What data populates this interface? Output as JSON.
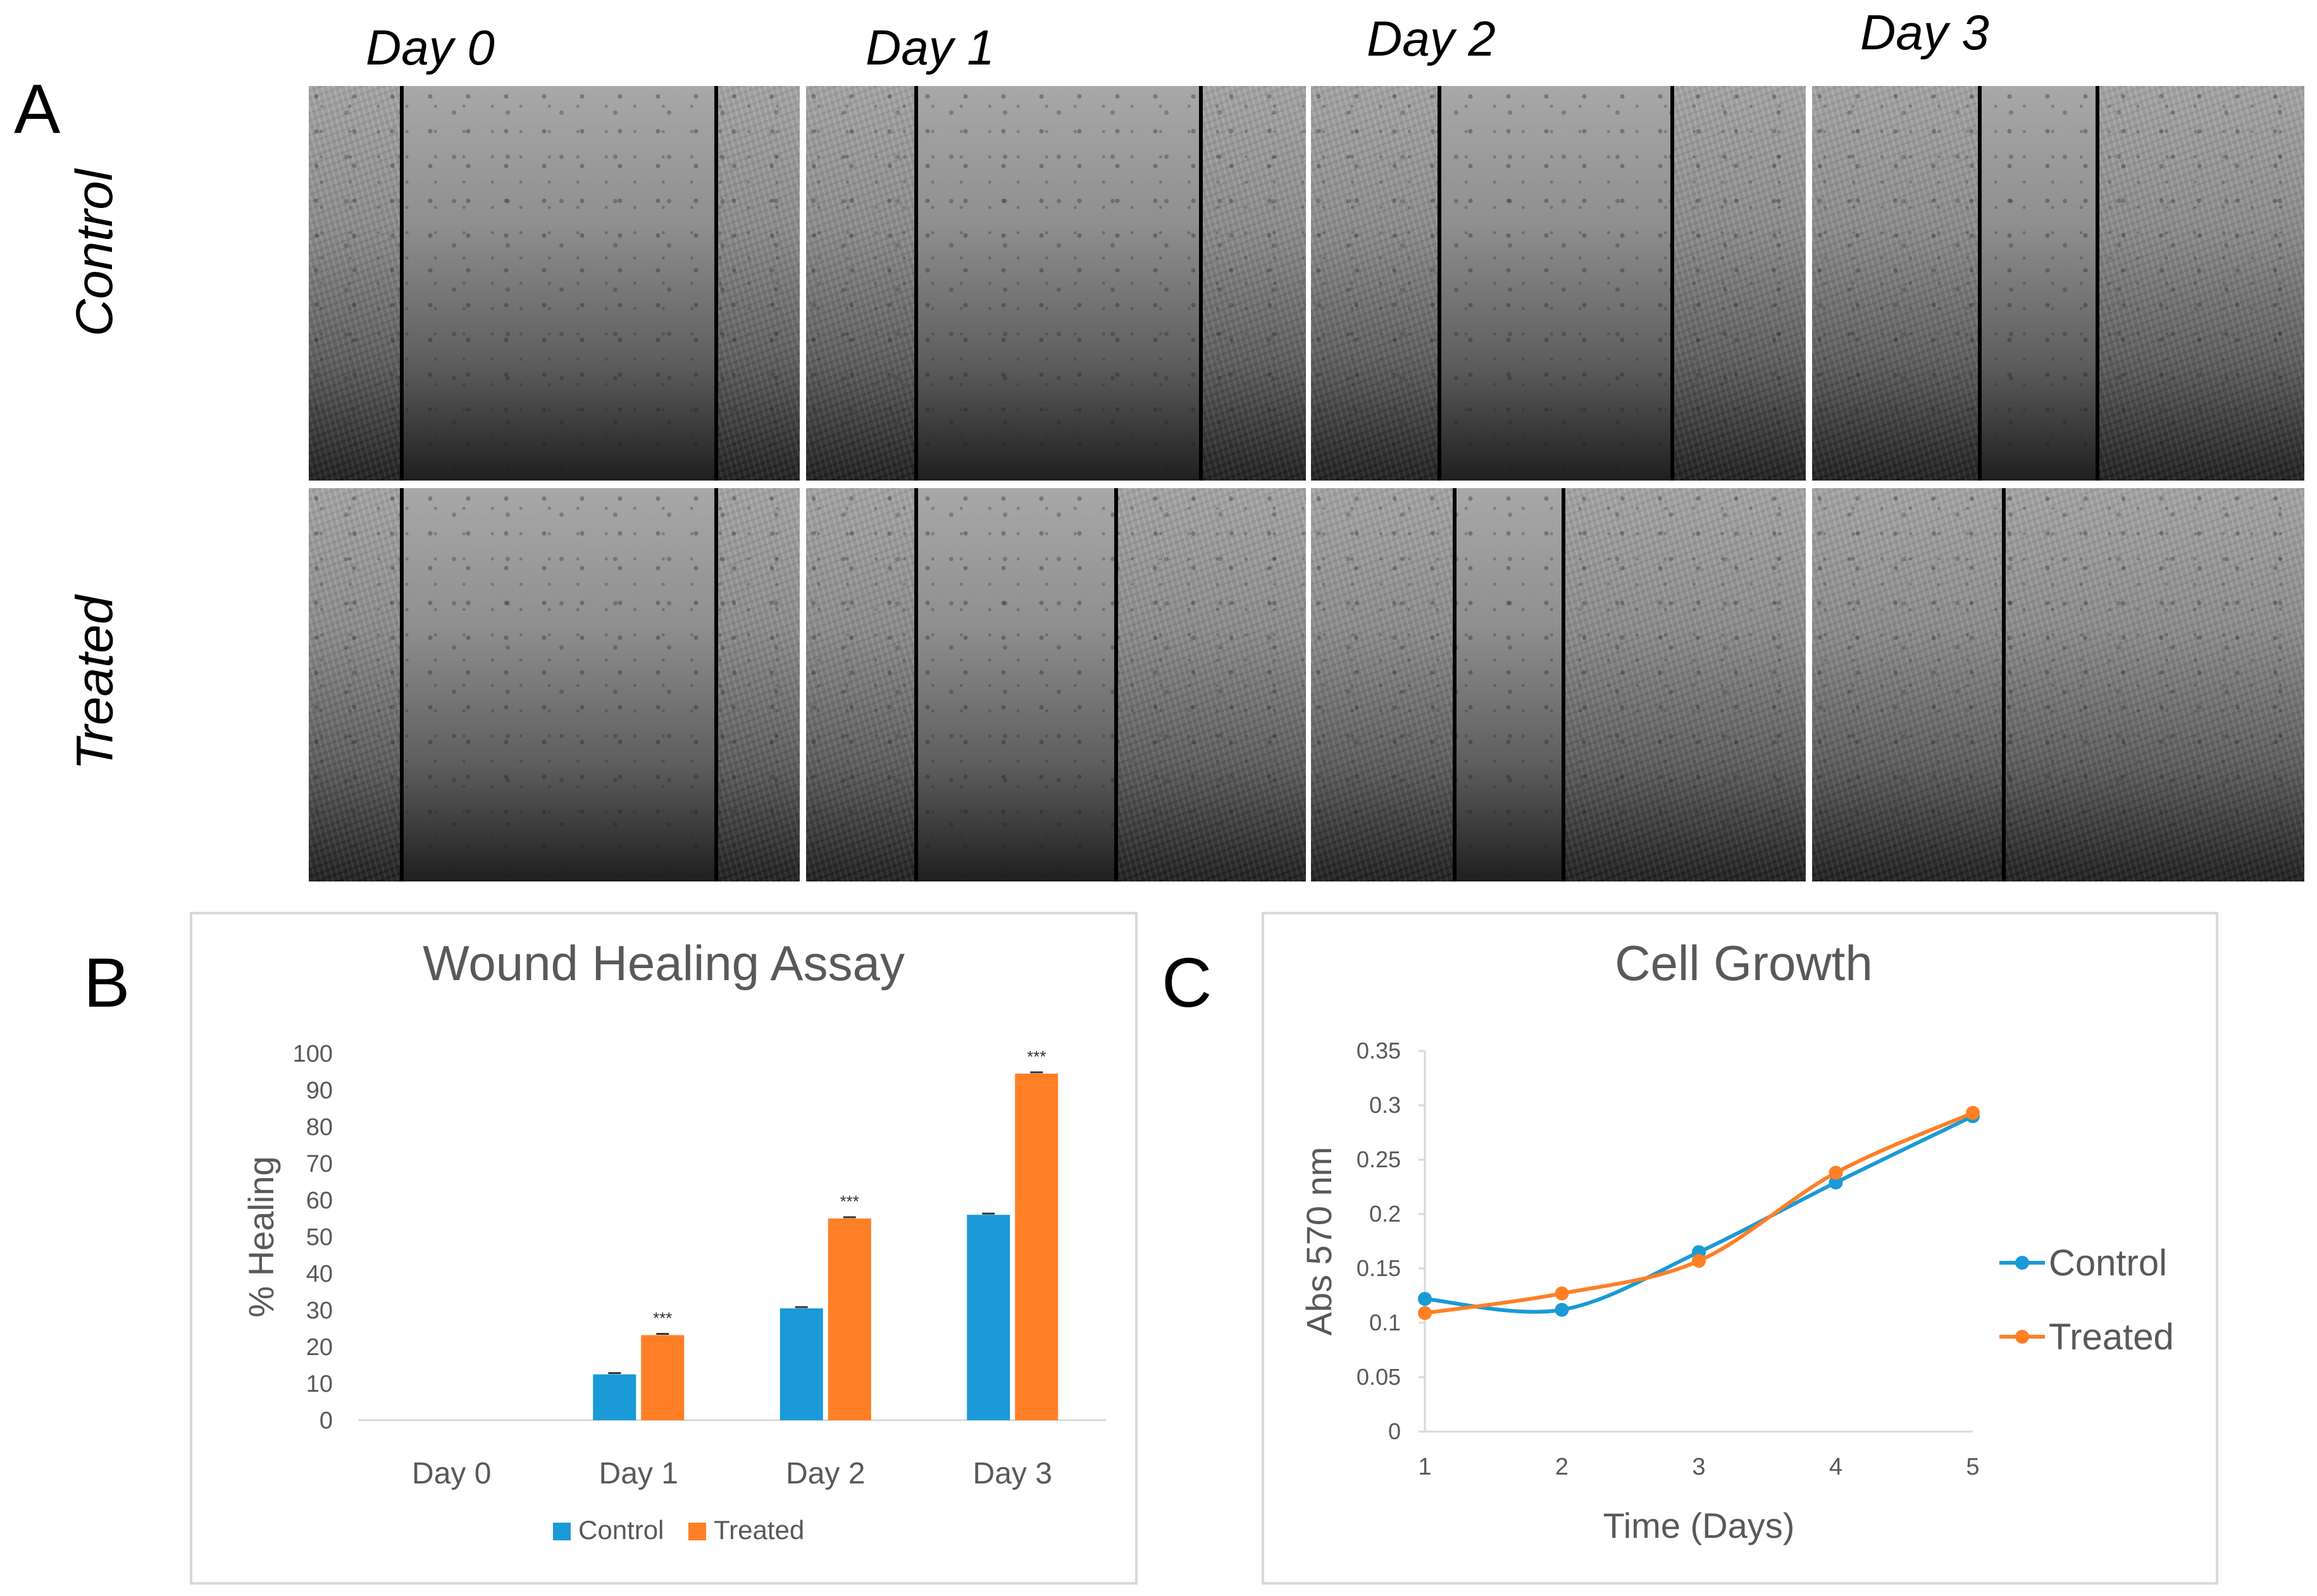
{
  "panels": {
    "a": "A",
    "b": "B",
    "c": "C"
  },
  "days": [
    "Day 0",
    "Day 1",
    "Day 2",
    "Day 3"
  ],
  "rows": [
    "Control",
    "Treated"
  ],
  "micrographs": {
    "control": [
      {
        "gap": [
          0.19,
          0.83
        ]
      },
      {
        "gap": [
          0.22,
          0.79
        ]
      },
      {
        "gap": [
          0.26,
          0.73
        ]
      },
      {
        "gap": [
          0.34,
          0.58
        ]
      }
    ],
    "treated": [
      {
        "gap": [
          0.19,
          0.83
        ]
      },
      {
        "gap": [
          0.22,
          0.62
        ]
      },
      {
        "gap": [
          0.29,
          0.51
        ]
      },
      {
        "gap": [
          0.39,
          0.39
        ]
      }
    ]
  },
  "colors": {
    "control": "#1a9ad6",
    "treated": "#ff7f27",
    "axis": "#d9d9d9",
    "text": "#595959",
    "title": "#595959"
  },
  "chart_data": [
    {
      "type": "bar",
      "title": "Wound Healing Assay",
      "ylabel": "% Healing",
      "xlabel": "",
      "ylim": [
        0,
        100
      ],
      "yticks": [
        "0",
        "10",
        "20",
        "30",
        "40",
        "50",
        "60",
        "70",
        "80",
        "90",
        "100"
      ],
      "categories": [
        "Day 0",
        "Day 1",
        "Day 2",
        "Day 3"
      ],
      "series": [
        {
          "name": "Control",
          "values": [
            0,
            12.5,
            30.5,
            56
          ]
        },
        {
          "name": "Treated",
          "values": [
            0,
            23.2,
            55,
            94.5
          ]
        }
      ],
      "annotations": [
        "",
        "***",
        "***",
        "***"
      ],
      "legend": "bottom"
    },
    {
      "type": "line",
      "title": "Cell Growth",
      "xlabel": "Time (Days)",
      "ylabel": "Abs 570 nm",
      "xlim": [
        1,
        5
      ],
      "ylim": [
        0,
        0.35
      ],
      "xticks": [
        "1",
        "2",
        "3",
        "4",
        "5"
      ],
      "yticks": [
        "0",
        "0.05",
        "0.1",
        "0.15",
        "0.2",
        "0.25",
        "0.3",
        "0.35"
      ],
      "x": [
        1,
        2,
        3,
        4,
        5
      ],
      "series": [
        {
          "name": "Control",
          "values": [
            0.122,
            0.112,
            0.165,
            0.229,
            0.29
          ]
        },
        {
          "name": "Treated",
          "values": [
            0.109,
            0.127,
            0.157,
            0.238,
            0.293
          ]
        }
      ],
      "legend": "right"
    }
  ]
}
